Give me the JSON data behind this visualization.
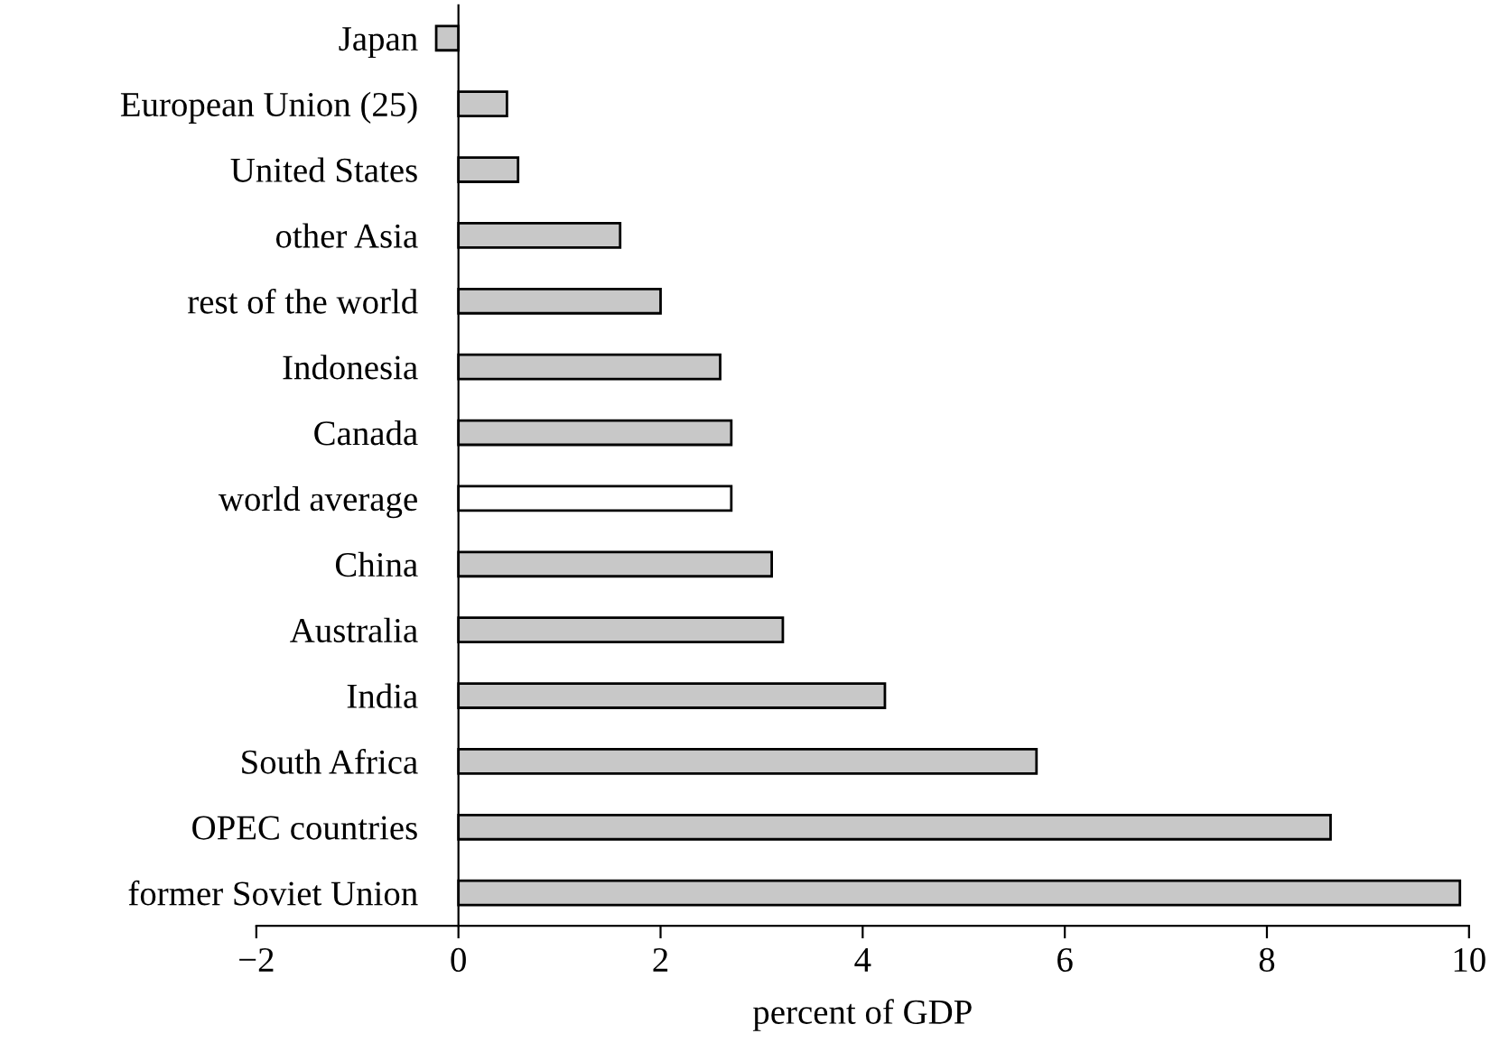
{
  "chart_data": {
    "type": "bar",
    "orientation": "horizontal",
    "xlabel": "percent of GDP",
    "categories": [
      "Japan",
      "European Union (25)",
      "United States",
      "other Asia",
      "rest of the world",
      "Indonesia",
      "Canada",
      "world average",
      "China",
      "Australia",
      "India",
      "South Africa",
      "OPEC countries",
      "former Soviet Union"
    ],
    "values": [
      -0.22,
      0.48,
      0.59,
      1.6,
      2.0,
      2.59,
      2.7,
      2.7,
      3.1,
      3.21,
      4.22,
      5.72,
      8.63,
      9.91
    ],
    "colors": [
      "#c8c8c8",
      "#c8c8c8",
      "#c8c8c8",
      "#c8c8c8",
      "#c8c8c8",
      "#c8c8c8",
      "#c8c8c8",
      "#ffffff",
      "#c8c8c8",
      "#c8c8c8",
      "#c8c8c8",
      "#c8c8c8",
      "#c8c8c8",
      "#c8c8c8"
    ],
    "xlim": [
      -2,
      10
    ],
    "xticks": [
      {
        "value": -2,
        "label": "−2"
      },
      0,
      2,
      4,
      6,
      8,
      10
    ],
    "grid": false,
    "legend": false
  }
}
